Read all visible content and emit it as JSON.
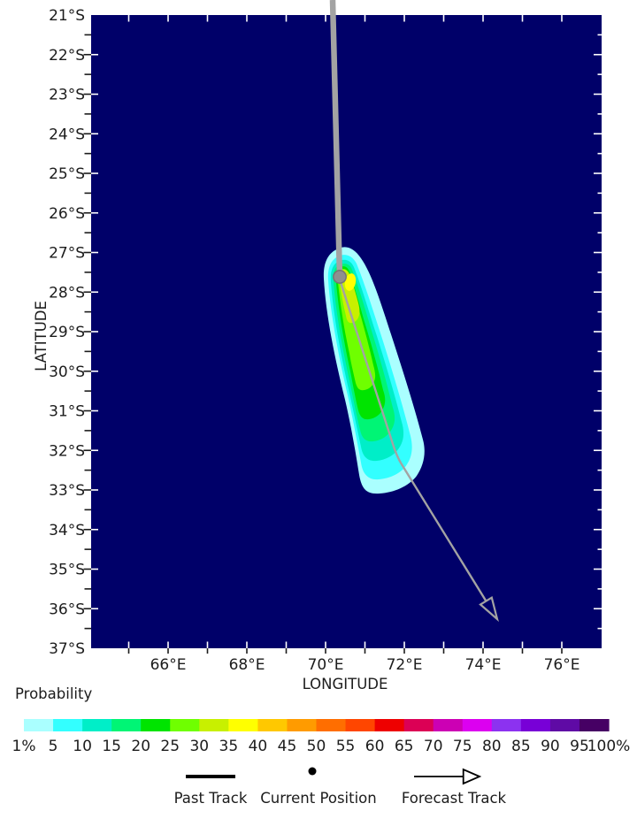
{
  "colors": {
    "ocean": "#000069",
    "track": "#a3a3a3",
    "current_position_fill": "#8f8f8f",
    "current_position_edge": "#757575",
    "text": "#1c1c1c",
    "legend_black": "#000000"
  },
  "axes": {
    "x_label": "LONGITUDE",
    "y_label": "LATITUDE",
    "lat_labels": [
      "21°S",
      "22°S",
      "23°S",
      "24°S",
      "25°S",
      "26°S",
      "27°S",
      "28°S",
      "29°S",
      "30°S",
      "31°S",
      "32°S",
      "33°S",
      "34°S",
      "35°S",
      "36°S",
      "37°S"
    ],
    "lon_labels": [
      "66°E",
      "68°E",
      "70°E",
      "72°E",
      "74°E",
      "76°E"
    ]
  },
  "colorbar": {
    "title": "Probability",
    "tick_labels": [
      "1%",
      "5",
      "10",
      "15",
      "20",
      "25",
      "30",
      "35",
      "40",
      "45",
      "50",
      "55",
      "60",
      "65",
      "70",
      "75",
      "80",
      "85",
      "90",
      "95",
      "100%"
    ],
    "band_colors": [
      "#aaffff",
      "#33ffff",
      "#00eec8",
      "#00f575",
      "#00e400",
      "#6fff00",
      "#c8f000",
      "#ffff00",
      "#ffc800",
      "#ff9b00",
      "#ff6e00",
      "#ff4600",
      "#ee0000",
      "#dc0055",
      "#cc00b4",
      "#dc00f0",
      "#8c32f0",
      "#7800d7",
      "#5f0aa5",
      "#460064"
    ]
  },
  "legend": {
    "past_track": "Past Track",
    "current_position": "Current Position",
    "forecast_track": "Forecast Track"
  },
  "chart_data": {
    "type": "heatmap",
    "subtype": "cyclone-strike-probability-map",
    "title": "",
    "xlabel": "LONGITUDE",
    "ylabel": "LATITUDE",
    "lon_axis": {
      "min_deg_e": 64.1,
      "max_deg_e": 77.1,
      "tick_interval_deg": 1,
      "label_interval_deg": 2,
      "labels_deg_e": [
        66,
        68,
        70,
        72,
        74,
        76
      ]
    },
    "lat_axis": {
      "min_deg_s": 21,
      "max_deg_s": 37,
      "tick_interval_deg": 0.5,
      "label_interval_deg": 1,
      "labels_deg_s": [
        21,
        22,
        23,
        24,
        25,
        26,
        27,
        28,
        29,
        30,
        31,
        32,
        33,
        34,
        35,
        36,
        37
      ]
    },
    "probability_levels_percent": [
      1,
      5,
      10,
      15,
      20,
      25,
      30,
      35,
      40,
      45,
      50,
      55,
      60,
      65,
      70,
      75,
      80,
      85,
      90,
      95,
      100
    ],
    "plume_max_probability_percent": 40,
    "plume_layers": [
      {
        "level_percent": 1,
        "color": "#aaffff"
      },
      {
        "level_percent": 5,
        "color": "#33ffff"
      },
      {
        "level_percent": 10,
        "color": "#00eec8"
      },
      {
        "level_percent": 15,
        "color": "#00f575"
      },
      {
        "level_percent": 20,
        "color": "#00e400"
      },
      {
        "level_percent": 25,
        "color": "#6fff00"
      },
      {
        "level_percent": 30,
        "color": "#c8f000"
      },
      {
        "level_percent": 35,
        "color": "#ffff00"
      }
    ],
    "plume_extent": {
      "lon_deg_e": [
        70.0,
        72.6
      ],
      "lat_deg_s": [
        26.9,
        33.1
      ]
    },
    "current_position": {
      "lon_deg_e": 70.35,
      "lat_deg_s": 27.6
    },
    "past_track": [
      {
        "lon_deg_e": 70.2,
        "lat_deg_s": 20.6
      },
      {
        "lon_deg_e": 70.3,
        "lat_deg_s": 25.0
      },
      {
        "lon_deg_e": 70.35,
        "lat_deg_s": 27.6
      }
    ],
    "forecast_track": [
      {
        "lon_deg_e": 70.35,
        "lat_deg_s": 27.6
      },
      {
        "lon_deg_e": 71.8,
        "lat_deg_s": 32.1
      },
      {
        "lon_deg_e": 74.3,
        "lat_deg_s": 36.3
      }
    ]
  }
}
